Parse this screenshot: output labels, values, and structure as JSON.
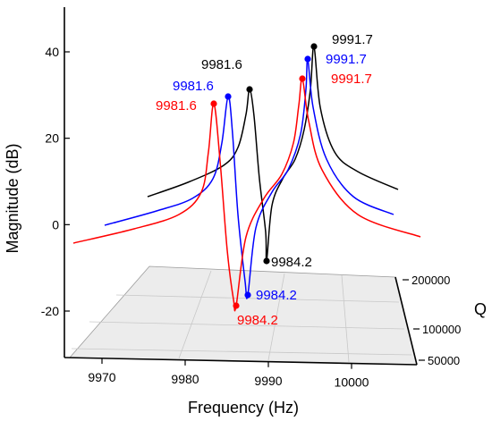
{
  "chart_data": {
    "type": "line",
    "title": "",
    "xlabel": "Frequency (Hz)",
    "ylabel": "Magnitude (dB)",
    "zlabel": "Q",
    "xlim": [
      9965,
      10004
    ],
    "ylim": [
      -24,
      50
    ],
    "x_ticks": [
      9970,
      9980,
      9990,
      10000
    ],
    "y_ticks": [
      -20,
      0,
      20,
      40
    ],
    "q_ticks": [
      50000,
      100000,
      200000
    ],
    "x_tick_labels": [
      "9970",
      "9980",
      "9990",
      "10000"
    ],
    "y_tick_labels": [
      "-20",
      "0",
      "20",
      "40"
    ],
    "q_tick_labels": [
      "50000",
      "100000",
      "200000"
    ],
    "grid": true,
    "series": [
      {
        "color": "#000000",
        "q": 200000,
        "resonance_hz": 9981.6,
        "resonance_db": 32,
        "antiresonance_hz": 9984.2,
        "antiresonance_db": -8,
        "resonance2_hz": 9991.7,
        "resonance2_db": 42
      },
      {
        "color": "#0000ff",
        "q": 100000,
        "resonance_hz": 9981.6,
        "resonance_db": 30,
        "antiresonance_hz": 9984.2,
        "antiresonance_db": -16,
        "resonance2_hz": 9991.7,
        "resonance2_db": 39
      },
      {
        "color": "#ff0000",
        "q": 50000,
        "resonance_hz": 9981.6,
        "resonance_db": 28,
        "antiresonance_hz": 9984.2,
        "antiresonance_db": -18,
        "resonance2_hz": 9991.7,
        "resonance2_db": 34
      }
    ],
    "annotations": [
      {
        "text": "9981.6",
        "color": "#000000"
      },
      {
        "text": "9981.6",
        "color": "#0000ff"
      },
      {
        "text": "9981.6",
        "color": "#ff0000"
      },
      {
        "text": "9991.7",
        "color": "#000000"
      },
      {
        "text": "9991.7",
        "color": "#0000ff"
      },
      {
        "text": "9991.7",
        "color": "#ff0000"
      },
      {
        "text": "9984.2",
        "color": "#000000"
      },
      {
        "text": "9984.2",
        "color": "#0000ff"
      },
      {
        "text": "9984.2",
        "color": "#ff0000"
      }
    ]
  }
}
